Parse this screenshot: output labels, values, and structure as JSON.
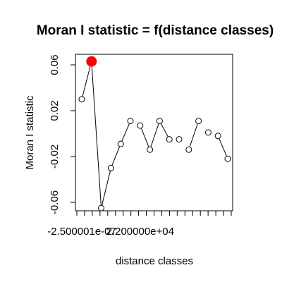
{
  "chart_data": {
    "type": "line",
    "title": "Moran I statistic = f(distance classes)",
    "xlabel": "distance classes",
    "ylabel": "Moran I statistic",
    "ylim": [
      -0.07,
      0.065
    ],
    "y_ticks": [
      {
        "value": 0.06,
        "label": "0.06"
      },
      {
        "value": 0.02,
        "label": "0.02"
      },
      {
        "value": -0.02,
        "label": "-0.02"
      },
      {
        "value": -0.06,
        "label": "-0.06"
      }
    ],
    "x_tick_labels": [
      {
        "index": 0,
        "label": "-2.500001e-07"
      },
      {
        "index": 6,
        "label": "2.200000e+04"
      }
    ],
    "highlight_color": "#ff0000",
    "series": [
      {
        "points": [
          {
            "index": 0,
            "y": 0.03,
            "highlight": false
          },
          {
            "index": 1,
            "y": 0.063,
            "highlight": true
          },
          {
            "index": 2,
            "y": -0.065,
            "highlight": false
          },
          {
            "index": 3,
            "y": -0.03,
            "highlight": false
          },
          {
            "index": 4,
            "y": -0.009,
            "highlight": false
          },
          {
            "index": 5,
            "y": 0.011,
            "highlight": false
          },
          {
            "index": 6,
            "y": 0.007,
            "highlight": false
          },
          {
            "index": 7,
            "y": -0.014,
            "highlight": false
          },
          {
            "index": 8,
            "y": 0.011,
            "highlight": false
          },
          {
            "index": 9,
            "y": -0.005,
            "highlight": false
          },
          {
            "index": 10,
            "y": -0.005,
            "highlight": false
          },
          {
            "index": 11,
            "y": -0.014,
            "highlight": false
          },
          {
            "index": 12,
            "y": 0.011,
            "highlight": false
          },
          {
            "index": 13,
            "y": 0.001,
            "highlight": false
          },
          {
            "index": 14,
            "y": -0.002,
            "highlight": false
          },
          {
            "index": 15,
            "y": -0.022,
            "highlight": false
          }
        ],
        "connected_segments": [
          [
            0,
            1
          ],
          [
            1,
            2
          ],
          [
            2,
            3
          ],
          [
            3,
            4
          ],
          [
            4,
            5
          ],
          [
            6,
            7
          ],
          [
            7,
            8
          ],
          [
            8,
            9
          ],
          [
            11,
            12
          ],
          [
            14,
            15
          ]
        ]
      }
    ],
    "x_tick_count": 21
  }
}
